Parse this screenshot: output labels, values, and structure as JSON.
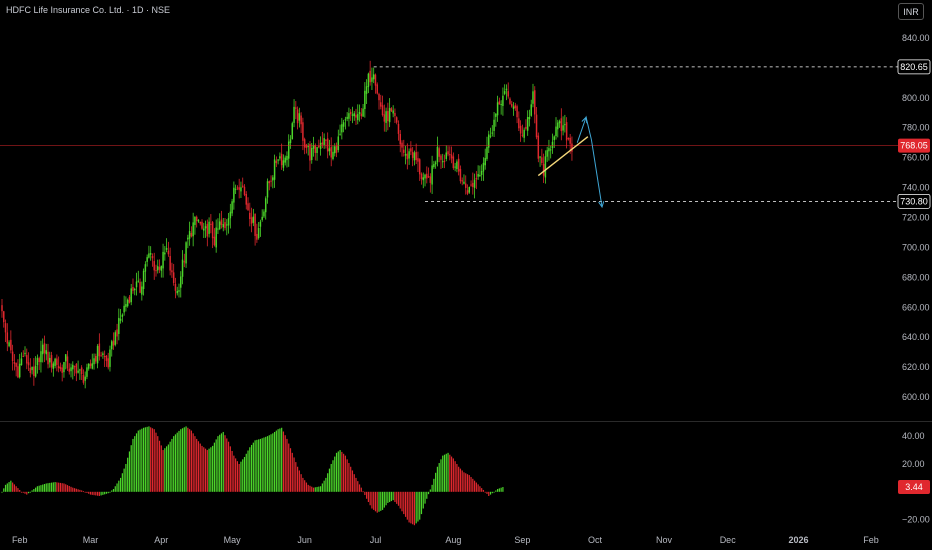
{
  "header": {
    "title": "HDFC Life Insurance Co. Ltd. · 1D · NSE",
    "currency_button": "INR"
  },
  "colors": {
    "up": "#4cd62a",
    "down": "#e0282e",
    "axis_text": "#b7bac2",
    "grid_separator": "#2a2a2a",
    "current_price_bg": "#e0282e",
    "trend_line": "#f3d77a",
    "projection": "#3fa7d6",
    "level_line": "#ffffff"
  },
  "chart_data": [
    {
      "type": "candlestick",
      "title": "",
      "ylim": [
        588,
        852
      ],
      "y_ticks": [
        600,
        620,
        640,
        660,
        680,
        700,
        720,
        740,
        760,
        780,
        800,
        820,
        840
      ],
      "x_labels": [
        {
          "label": "Feb",
          "t": 10
        },
        {
          "label": "Mar",
          "t": 50
        },
        {
          "label": "Apr",
          "t": 90
        },
        {
          "label": "May",
          "t": 130
        },
        {
          "label": "Jun",
          "t": 171
        },
        {
          "label": "Jul",
          "t": 211
        },
        {
          "label": "Aug",
          "t": 255
        },
        {
          "label": "Sep",
          "t": 294
        },
        {
          "label": "Oct",
          "t": 335
        },
        {
          "label": "Nov",
          "t": 374
        },
        {
          "label": "Dec",
          "t": 410
        },
        {
          "label": "2026",
          "t": 450
        },
        {
          "label": "Feb",
          "t": 491
        }
      ],
      "price_path": [
        [
          0,
          655
        ],
        [
          3,
          638
        ],
        [
          6,
          624
        ],
        [
          9,
          618
        ],
        [
          12,
          628
        ],
        [
          15,
          622
        ],
        [
          18,
          612
        ],
        [
          21,
          628
        ],
        [
          24,
          632
        ],
        [
          27,
          622
        ],
        [
          30,
          625
        ],
        [
          33,
          618
        ],
        [
          36,
          624
        ],
        [
          39,
          617
        ],
        [
          42,
          620
        ],
        [
          45,
          613
        ],
        [
          48,
          615
        ],
        [
          51,
          624
        ],
        [
          54,
          630
        ],
        [
          57,
          628
        ],
        [
          60,
          622
        ],
        [
          63,
          638
        ],
        [
          66,
          648
        ],
        [
          69,
          660
        ],
        [
          72,
          668
        ],
        [
          75,
          675
        ],
        [
          78,
          672
        ],
        [
          81,
          690
        ],
        [
          84,
          695
        ],
        [
          87,
          685
        ],
        [
          90,
          690
        ],
        [
          93,
          698
        ],
        [
          96,
          680
        ],
        [
          99,
          670
        ],
        [
          102,
          688
        ],
        [
          105,
          705
        ],
        [
          108,
          715
        ],
        [
          111,
          718
        ],
        [
          114,
          708
        ],
        [
          117,
          714
        ],
        [
          120,
          705
        ],
        [
          123,
          715
        ],
        [
          126,
          712
        ],
        [
          129,
          728
        ],
        [
          132,
          740
        ],
        [
          135,
          745
        ],
        [
          138,
          730
        ],
        [
          141,
          720
        ],
        [
          144,
          708
        ],
        [
          147,
          722
        ],
        [
          150,
          740
        ],
        [
          153,
          750
        ],
        [
          156,
          762
        ],
        [
          159,
          758
        ],
        [
          162,
          768
        ],
        [
          165,
          790
        ],
        [
          168,
          785
        ],
        [
          171,
          770
        ],
        [
          174,
          762
        ],
        [
          177,
          765
        ],
        [
          180,
          772
        ],
        [
          183,
          770
        ],
        [
          186,
          760
        ],
        [
          189,
          768
        ],
        [
          192,
          778
        ],
        [
          195,
          785
        ],
        [
          198,
          790
        ],
        [
          201,
          785
        ],
        [
          204,
          795
        ],
        [
          207,
          812
        ],
        [
          210,
          820
        ],
        [
          213,
          798
        ],
        [
          216,
          785
        ],
        [
          219,
          790
        ],
        [
          222,
          785
        ],
        [
          225,
          770
        ],
        [
          228,
          760
        ],
        [
          231,
          765
        ],
        [
          234,
          758
        ],
        [
          237,
          748
        ],
        [
          240,
          742
        ],
        [
          243,
          750
        ],
        [
          246,
          765
        ],
        [
          249,
          760
        ],
        [
          252,
          765
        ],
        [
          255,
          758
        ],
        [
          258,
          750
        ],
        [
          261,
          742
        ],
        [
          264,
          738
        ],
        [
          267,
          745
        ],
        [
          270,
          752
        ],
        [
          273,
          762
        ],
        [
          276,
          778
        ],
        [
          279,
          788
        ],
        [
          282,
          800
        ],
        [
          285,
          802
        ],
        [
          288,
          796
        ],
        [
          291,
          786
        ],
        [
          294,
          775
        ],
        [
          297,
          785
        ],
        [
          300,
          800
        ],
        [
          303,
          760
        ],
        [
          306,
          752
        ],
        [
          309,
          765
        ],
        [
          312,
          778
        ],
        [
          315,
          780
        ],
        [
          318,
          778
        ],
        [
          321,
          770
        ],
        [
          322,
          768
        ]
      ],
      "current_price": "768.05",
      "levels": [
        {
          "label": "820.65",
          "value": 820.65,
          "t_start": 210
        },
        {
          "label": "730.80",
          "value": 730.8,
          "t_start": 239
        }
      ],
      "trend_line": [
        [
          303,
          748
        ],
        [
          331,
          774
        ]
      ],
      "projection": [
        [
          325,
          770
        ],
        [
          330,
          787
        ],
        [
          333,
          772
        ],
        [
          339,
          727
        ]
      ]
    },
    {
      "type": "histogram",
      "title": "",
      "ylim": [
        -26,
        48
      ],
      "y_ticks": [
        40,
        20,
        0,
        -20
      ],
      "y_tick_labels": [
        "40.00",
        "20.00",
        "",
        "−20.00"
      ],
      "current_value": "3.44",
      "value_path": [
        [
          0,
          0
        ],
        [
          2,
          5
        ],
        [
          5,
          8
        ],
        [
          8,
          4
        ],
        [
          11,
          0
        ],
        [
          14,
          -2
        ],
        [
          17,
          1
        ],
        [
          20,
          4
        ],
        [
          25,
          6
        ],
        [
          30,
          7
        ],
        [
          35,
          6
        ],
        [
          40,
          3
        ],
        [
          45,
          1
        ],
        [
          50,
          -2
        ],
        [
          55,
          -3
        ],
        [
          60,
          -1
        ],
        [
          63,
          2
        ],
        [
          67,
          10
        ],
        [
          70,
          20
        ],
        [
          74,
          38
        ],
        [
          77,
          44
        ],
        [
          80,
          46
        ],
        [
          83,
          47
        ],
        [
          86,
          45
        ],
        [
          88,
          40
        ],
        [
          91,
          30
        ],
        [
          94,
          34
        ],
        [
          97,
          40
        ],
        [
          101,
          45
        ],
        [
          104,
          47
        ],
        [
          107,
          44
        ],
        [
          110,
          38
        ],
        [
          113,
          33
        ],
        [
          116,
          30
        ],
        [
          119,
          33
        ],
        [
          122,
          40
        ],
        [
          125,
          43
        ],
        [
          128,
          36
        ],
        [
          131,
          26
        ],
        [
          134,
          20
        ],
        [
          137,
          25
        ],
        [
          140,
          32
        ],
        [
          143,
          37
        ],
        [
          146,
          38
        ],
        [
          150,
          40
        ],
        [
          153,
          42
        ],
        [
          156,
          45
        ],
        [
          158,
          46
        ],
        [
          161,
          38
        ],
        [
          164,
          28
        ],
        [
          167,
          18
        ],
        [
          170,
          10
        ],
        [
          173,
          5
        ],
        [
          176,
          3
        ],
        [
          180,
          4
        ],
        [
          183,
          10
        ],
        [
          186,
          20
        ],
        [
          189,
          28
        ],
        [
          191,
          30
        ],
        [
          194,
          26
        ],
        [
          197,
          18
        ],
        [
          200,
          10
        ],
        [
          203,
          3
        ],
        [
          206,
          -5
        ],
        [
          209,
          -12
        ],
        [
          212,
          -15
        ],
        [
          215,
          -13
        ],
        [
          218,
          -8
        ],
        [
          221,
          -6
        ],
        [
          224,
          -10
        ],
        [
          227,
          -16
        ],
        [
          230,
          -22
        ],
        [
          233,
          -24
        ],
        [
          236,
          -20
        ],
        [
          238,
          -12
        ],
        [
          240,
          -5
        ],
        [
          243,
          5
        ],
        [
          246,
          18
        ],
        [
          249,
          26
        ],
        [
          252,
          28
        ],
        [
          255,
          24
        ],
        [
          258,
          18
        ],
        [
          261,
          14
        ],
        [
          264,
          12
        ],
        [
          267,
          8
        ],
        [
          270,
          4
        ],
        [
          273,
          0
        ],
        [
          275,
          -3
        ],
        [
          277,
          -1
        ],
        [
          280,
          2
        ],
        [
          283,
          3.44
        ]
      ]
    }
  ]
}
